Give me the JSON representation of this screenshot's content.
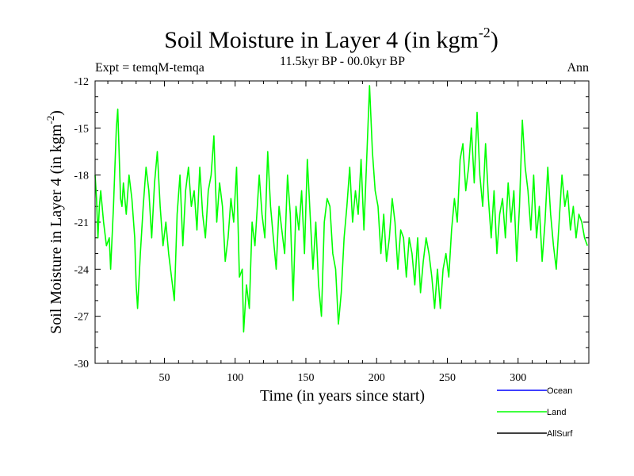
{
  "chart_data": {
    "type": "line",
    "title": "Soil Moisture in Layer 4 (in kgm",
    "title_exp": "-2",
    "title_close": ")",
    "subtitle": "11.5kyr BP - 00.0kyr BP",
    "expt_label": "Expt = temqM-temqa",
    "period_label": "Ann",
    "xlabel": "Time (in years since start)",
    "ylabel": "Soil Moisture in Layer 4 (in kgm",
    "ylabel_exp": "-2",
    "ylabel_close": ")",
    "xlim": [
      1,
      350
    ],
    "ylim": [
      -30,
      -12
    ],
    "x_ticks": [
      50,
      100,
      150,
      200,
      250,
      300
    ],
    "x_tick_labels": [
      "50",
      "100",
      "150",
      "200",
      "250",
      "300"
    ],
    "y_ticks": [
      -12,
      -15,
      -18,
      -21,
      -24,
      -27,
      -30
    ],
    "y_tick_labels": [
      "-12",
      "-15",
      "-18",
      "-21",
      "-24",
      "-27",
      "-30"
    ],
    "legend": [
      {
        "name": "Ocean",
        "color": "#0000ff"
      },
      {
        "name": "Land",
        "color": "#00ff00"
      },
      {
        "name": "AllSurf",
        "color": "#000000"
      }
    ],
    "series": [
      {
        "name": "Land",
        "color": "#00ff00",
        "points": [
          [
            1,
            -18
          ],
          [
            2,
            -19.5
          ],
          [
            3,
            -22
          ],
          [
            4,
            -20
          ],
          [
            5,
            -19
          ],
          [
            7,
            -21
          ],
          [
            9,
            -22.5
          ],
          [
            11,
            -22
          ],
          [
            12,
            -24
          ],
          [
            14,
            -20
          ],
          [
            16,
            -15
          ],
          [
            17,
            -13.8
          ],
          [
            19,
            -19.5
          ],
          [
            20,
            -20
          ],
          [
            21,
            -18.5
          ],
          [
            23,
            -20.5
          ],
          [
            25,
            -18
          ],
          [
            27,
            -19.5
          ],
          [
            29,
            -22
          ],
          [
            30,
            -25
          ],
          [
            31,
            -26.5
          ],
          [
            33,
            -23
          ],
          [
            35,
            -20
          ],
          [
            37,
            -17.5
          ],
          [
            39,
            -19
          ],
          [
            41,
            -22
          ],
          [
            43,
            -18.5
          ],
          [
            45,
            -16.5
          ],
          [
            47,
            -20
          ],
          [
            49,
            -22.5
          ],
          [
            51,
            -21
          ],
          [
            53,
            -23
          ],
          [
            55,
            -24.5
          ],
          [
            57,
            -26
          ],
          [
            59,
            -20.5
          ],
          [
            61,
            -18
          ],
          [
            63,
            -22.5
          ],
          [
            65,
            -19
          ],
          [
            67,
            -17.5
          ],
          [
            69,
            -20
          ],
          [
            71,
            -19
          ],
          [
            73,
            -21.5
          ],
          [
            75,
            -17.5
          ],
          [
            77,
            -20.5
          ],
          [
            79,
            -22
          ],
          [
            81,
            -19
          ],
          [
            83,
            -18
          ],
          [
            85,
            -15.5
          ],
          [
            87,
            -21
          ],
          [
            89,
            -18.5
          ],
          [
            91,
            -20
          ],
          [
            93,
            -23.5
          ],
          [
            95,
            -22
          ],
          [
            97,
            -19.5
          ],
          [
            99,
            -21
          ],
          [
            101,
            -17.5
          ],
          [
            103,
            -24.5
          ],
          [
            105,
            -24
          ],
          [
            106,
            -28
          ],
          [
            108,
            -25
          ],
          [
            110,
            -26.5
          ],
          [
            112,
            -21
          ],
          [
            114,
            -22.5
          ],
          [
            116,
            -19.5
          ],
          [
            117,
            -18
          ],
          [
            119,
            -20.5
          ],
          [
            121,
            -22
          ],
          [
            123,
            -16.5
          ],
          [
            125,
            -20
          ],
          [
            127,
            -22
          ],
          [
            129,
            -24
          ],
          [
            131,
            -20
          ],
          [
            133,
            -21.5
          ],
          [
            135,
            -23
          ],
          [
            137,
            -18
          ],
          [
            139,
            -20.5
          ],
          [
            141,
            -26
          ],
          [
            143,
            -20
          ],
          [
            145,
            -21.5
          ],
          [
            147,
            -19
          ],
          [
            149,
            -23
          ],
          [
            151,
            -17
          ],
          [
            153,
            -20.5
          ],
          [
            155,
            -24
          ],
          [
            157,
            -21
          ],
          [
            159,
            -25
          ],
          [
            161,
            -27
          ],
          [
            163,
            -21
          ],
          [
            165,
            -19.5
          ],
          [
            167,
            -20
          ],
          [
            169,
            -23
          ],
          [
            171,
            -24
          ],
          [
            173,
            -27.5
          ],
          [
            175,
            -25.5
          ],
          [
            177,
            -22
          ],
          [
            179,
            -20
          ],
          [
            181,
            -17.5
          ],
          [
            183,
            -21
          ],
          [
            185,
            -19
          ],
          [
            187,
            -20.5
          ],
          [
            189,
            -17
          ],
          [
            191,
            -21.5
          ],
          [
            193,
            -17
          ],
          [
            195,
            -12.3
          ],
          [
            197,
            -16.5
          ],
          [
            199,
            -19
          ],
          [
            201,
            -20
          ],
          [
            203,
            -23
          ],
          [
            205,
            -20.5
          ],
          [
            207,
            -23.5
          ],
          [
            209,
            -22
          ],
          [
            211,
            -19.5
          ],
          [
            213,
            -21
          ],
          [
            215,
            -24
          ],
          [
            217,
            -21.5
          ],
          [
            219,
            -22
          ],
          [
            221,
            -24.5
          ],
          [
            223,
            -22
          ],
          [
            225,
            -23
          ],
          [
            227,
            -25
          ],
          [
            229,
            -22
          ],
          [
            231,
            -25.5
          ],
          [
            233,
            -23.5
          ],
          [
            235,
            -22
          ],
          [
            237,
            -23
          ],
          [
            239,
            -24.5
          ],
          [
            241,
            -26.5
          ],
          [
            243,
            -24
          ],
          [
            245,
            -26.5
          ],
          [
            247,
            -24
          ],
          [
            249,
            -23
          ],
          [
            251,
            -24.5
          ],
          [
            253,
            -21.5
          ],
          [
            255,
            -19.5
          ],
          [
            257,
            -21
          ],
          [
            259,
            -17
          ],
          [
            261,
            -16
          ],
          [
            263,
            -19
          ],
          [
            265,
            -17.5
          ],
          [
            267,
            -15
          ],
          [
            269,
            -18.5
          ],
          [
            271,
            -14
          ],
          [
            273,
            -18
          ],
          [
            275,
            -20
          ],
          [
            277,
            -16
          ],
          [
            279,
            -19.5
          ],
          [
            281,
            -22
          ],
          [
            283,
            -19
          ],
          [
            285,
            -23
          ],
          [
            287,
            -20.5
          ],
          [
            289,
            -19.5
          ],
          [
            291,
            -22
          ],
          [
            293,
            -18.5
          ],
          [
            295,
            -21
          ],
          [
            297,
            -19
          ],
          [
            299,
            -23.5
          ],
          [
            301,
            -20
          ],
          [
            303,
            -14.5
          ],
          [
            305,
            -17.5
          ],
          [
            307,
            -19
          ],
          [
            309,
            -21.5
          ],
          [
            311,
            -18
          ],
          [
            313,
            -22
          ],
          [
            315,
            -20
          ],
          [
            317,
            -23.5
          ],
          [
            319,
            -21
          ],
          [
            321,
            -17.5
          ],
          [
            323,
            -20.5
          ],
          [
            325,
            -22.5
          ],
          [
            327,
            -24
          ],
          [
            329,
            -21
          ],
          [
            331,
            -18
          ],
          [
            333,
            -20
          ],
          [
            335,
            -19
          ],
          [
            337,
            -21.5
          ],
          [
            339,
            -20
          ],
          [
            341,
            -22
          ],
          [
            343,
            -20.5
          ],
          [
            345,
            -21
          ],
          [
            347,
            -22
          ],
          [
            349,
            -22.5
          ]
        ]
      }
    ]
  }
}
